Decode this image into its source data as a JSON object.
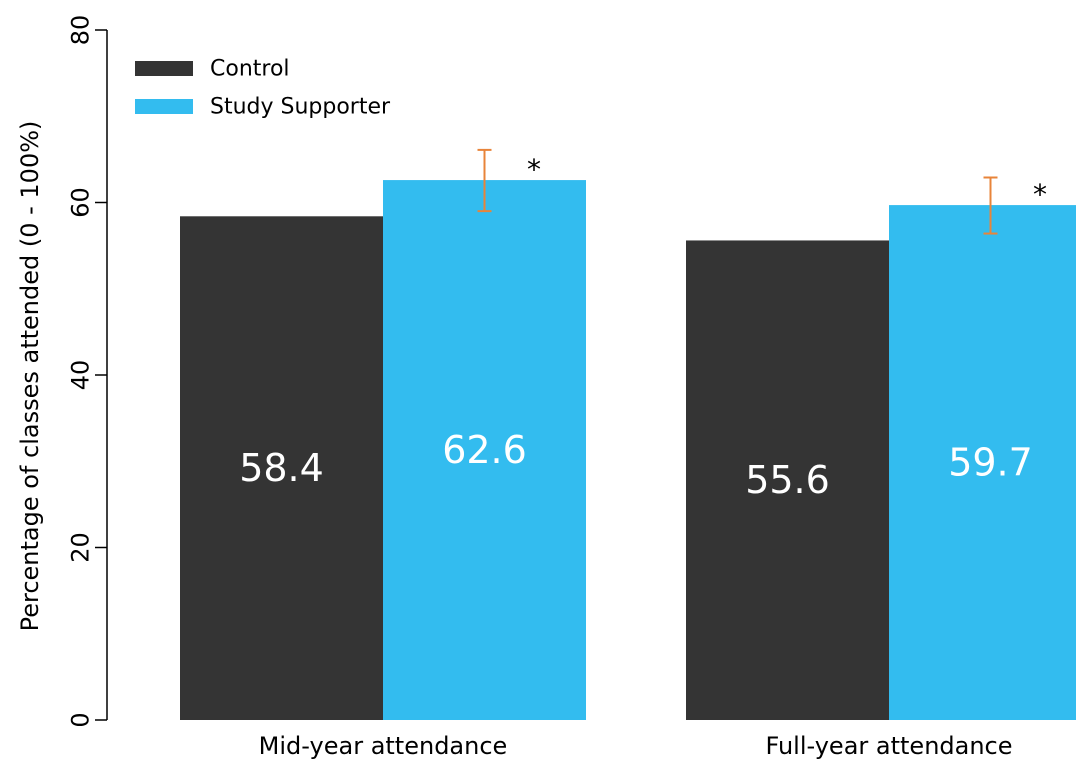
{
  "chart_data": {
    "type": "bar",
    "categories": [
      "Mid-year attendance",
      "Full-year attendance"
    ],
    "series": [
      {
        "name": "Control",
        "color": "#343434",
        "values": [
          58.4,
          55.6
        ],
        "value_labels": [
          "58.4",
          "55.6"
        ]
      },
      {
        "name": "Study Supporter",
        "color": "#33BCEF",
        "values": [
          62.6,
          59.7
        ],
        "value_labels": [
          "62.6",
          "59.7"
        ],
        "error_low": [
          59.0,
          56.4
        ],
        "error_high": [
          66.1,
          62.9
        ],
        "significance": [
          "*",
          "*"
        ]
      }
    ],
    "error_bar_color": "#E8843A",
    "ylabel": "Percentage of classes attended (0 - 100%)",
    "xlabel": "",
    "ylim": [
      0,
      80
    ],
    "yticks": [
      "0",
      "20",
      "40",
      "60",
      "80"
    ],
    "legend_position": "top-left",
    "grid": false
  }
}
